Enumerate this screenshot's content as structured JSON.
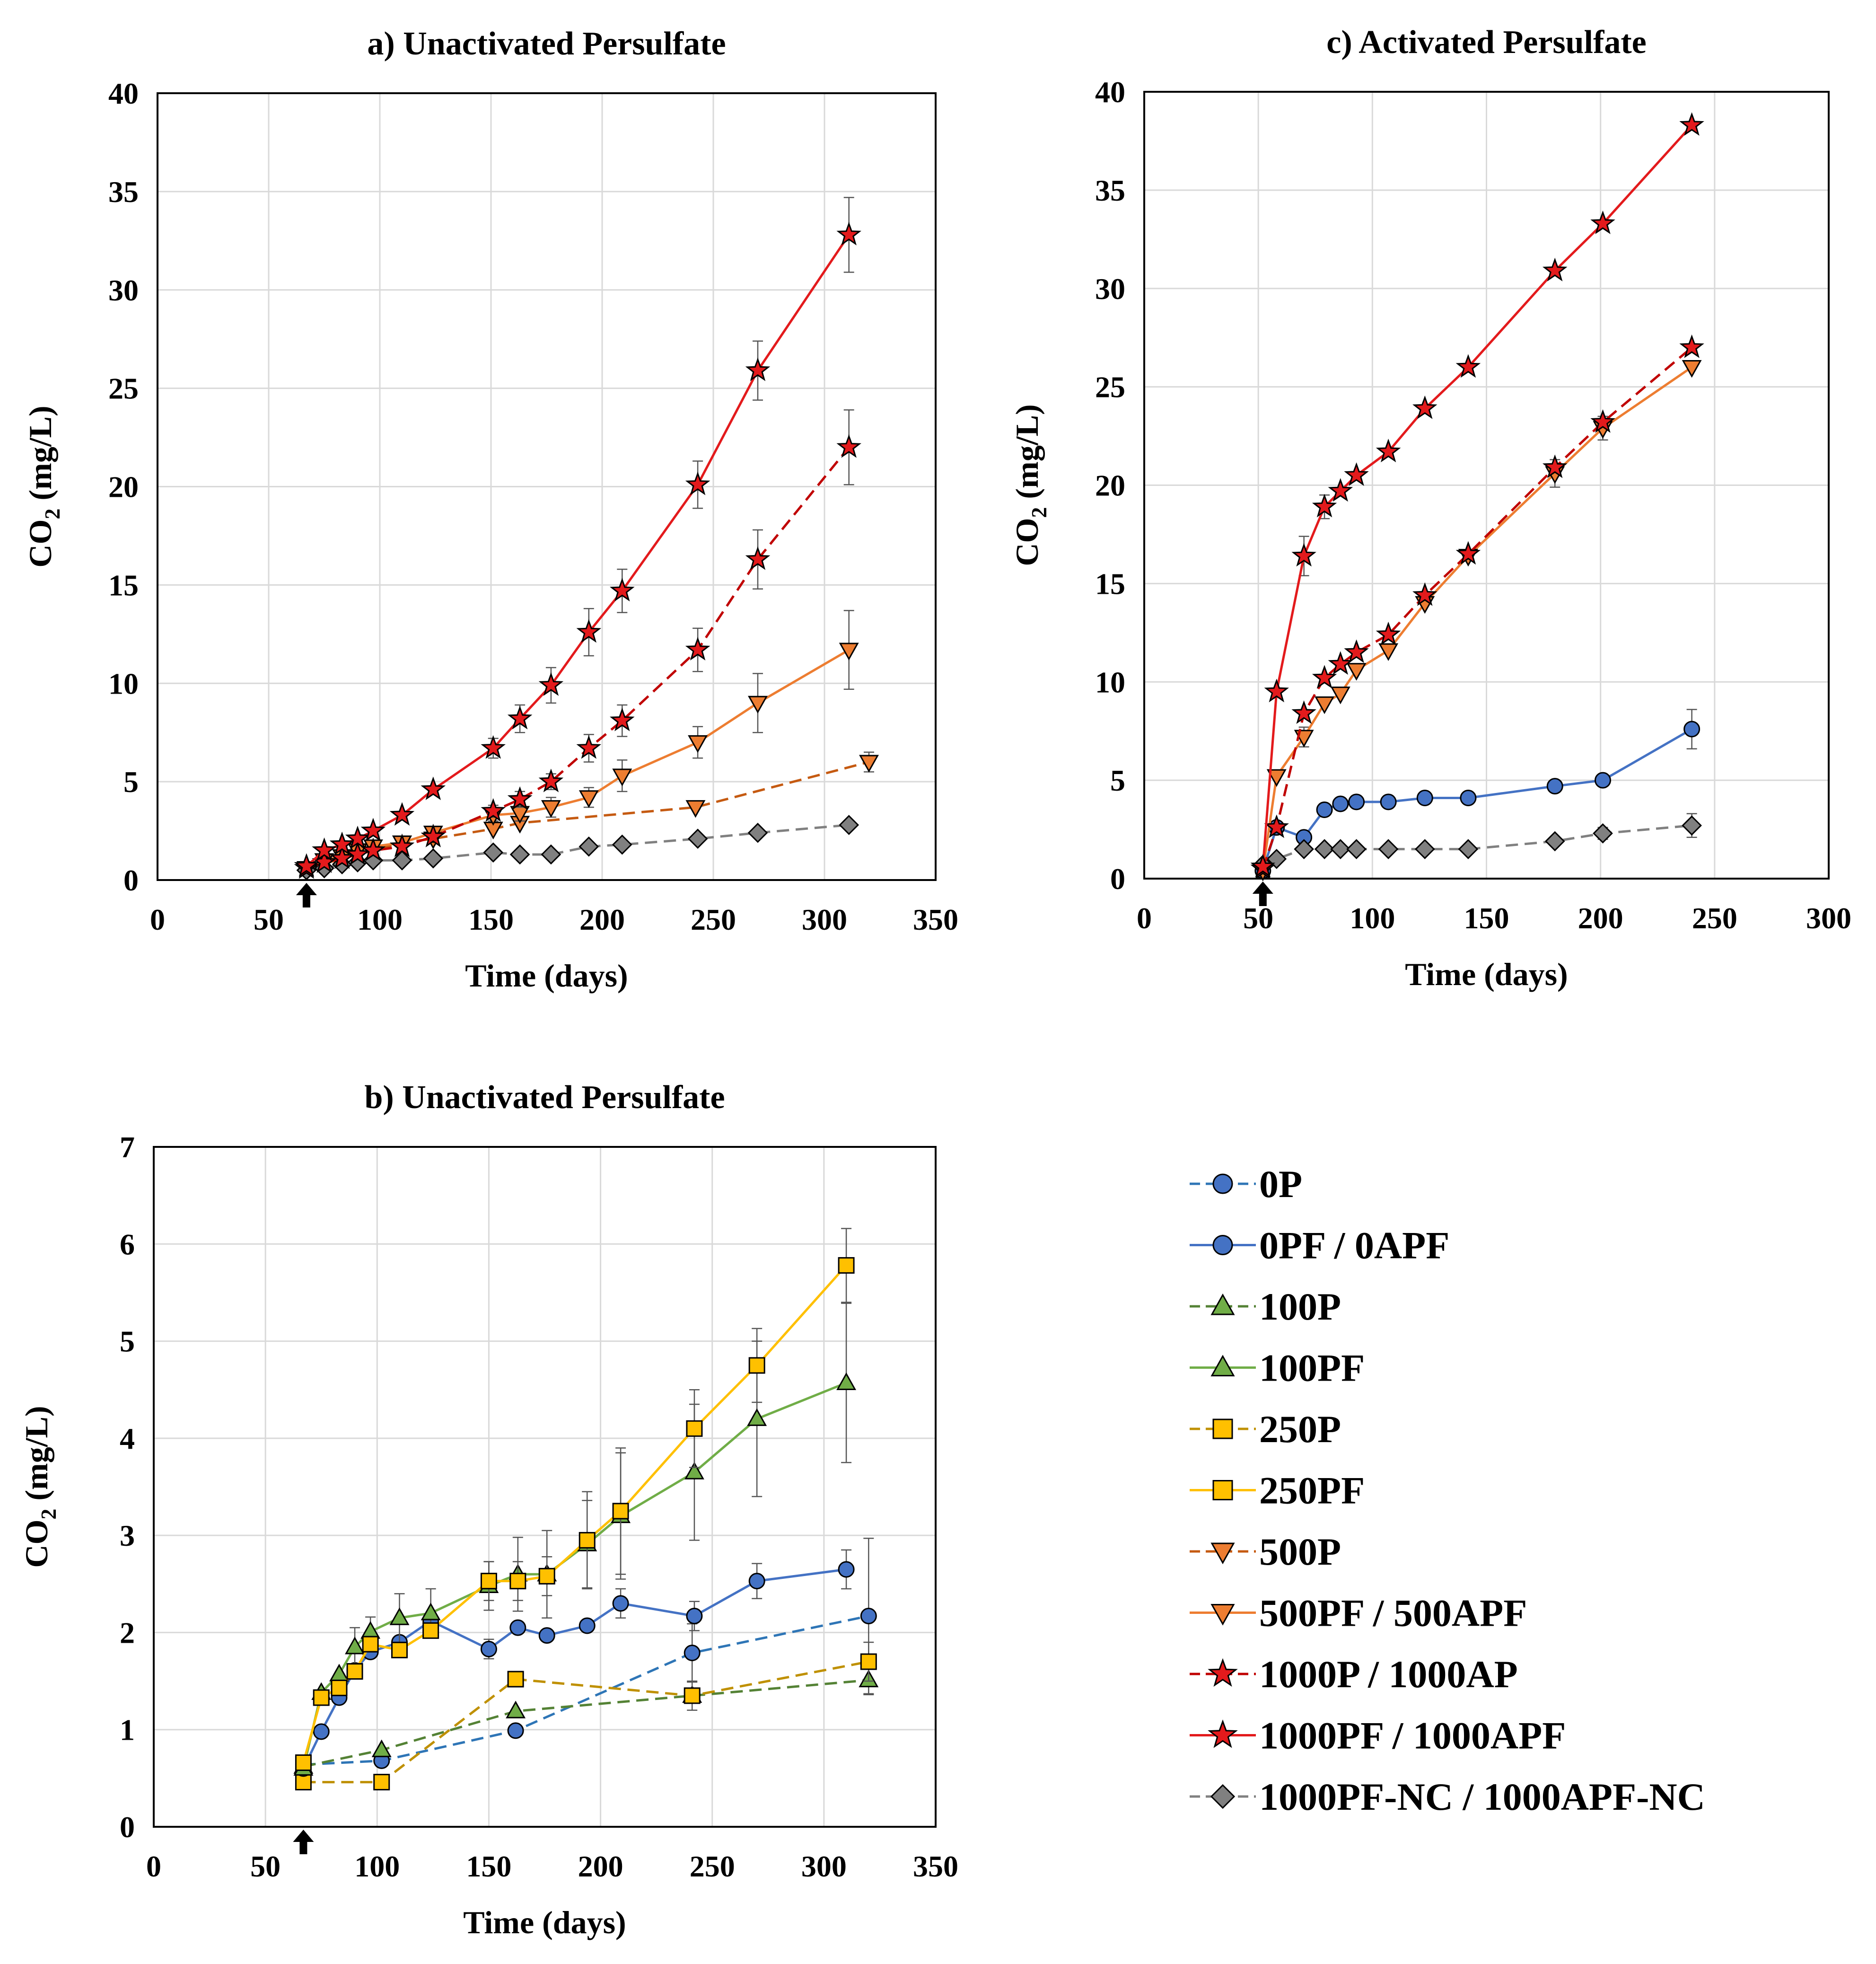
{
  "series_styles": {
    "0P": {
      "color": "#2e75b6",
      "fill": "#4472c4",
      "marker": "circle",
      "dash": true
    },
    "0PF": {
      "color": "#4472c4",
      "fill": "#4472c4",
      "marker": "circle",
      "dash": false
    },
    "100P": {
      "color": "#548235",
      "fill": "#70ad47",
      "marker": "triangle",
      "dash": true
    },
    "100PF": {
      "color": "#70ad47",
      "fill": "#70ad47",
      "marker": "triangle",
      "dash": false
    },
    "250P": {
      "color": "#bf9000",
      "fill": "#ffc000",
      "marker": "square",
      "dash": true
    },
    "250PF": {
      "color": "#ffc000",
      "fill": "#ffc000",
      "marker": "square",
      "dash": false
    },
    "500P": {
      "color": "#c55a11",
      "fill": "#ed7d31",
      "marker": "triangle-down",
      "dash": true
    },
    "500PF": {
      "color": "#ed7d31",
      "fill": "#ed7d31",
      "marker": "triangle-down",
      "dash": false
    },
    "1000P": {
      "color": "#c00000",
      "fill": "#e31a1c",
      "marker": "star",
      "dash": true
    },
    "1000PF": {
      "color": "#e31a1c",
      "fill": "#e31a1c",
      "marker": "star",
      "dash": false
    },
    "NC": {
      "color": "#808080",
      "fill": "#808080",
      "marker": "diamond",
      "dash": true
    }
  },
  "chart_data": [
    {
      "type": "line",
      "title": "a) Unactivated Persulfate",
      "xlabel": "Time (days)",
      "ylabel": "CO2 (mg/L)",
      "ylabel_main": "CO",
      "ylabel_sub": "2",
      "ylabel_rest": " (mg/L)",
      "xlim": [
        0,
        350
      ],
      "ylim": [
        0,
        40
      ],
      "xticks": [
        "0",
        "50",
        "100",
        "150",
        "200",
        "250",
        "300",
        "350"
      ],
      "yticks": [
        "0",
        "5",
        "10",
        "15",
        "20",
        "25",
        "30",
        "35",
        "40"
      ],
      "grid": true,
      "arrow_day": 67,
      "series": [
        {
          "name": "500P",
          "style": "500P",
          "x": [
            67,
            110,
            124,
            151,
            163,
            242,
            320
          ],
          "y": [
            0.6,
            1.9,
            2.1,
            2.6,
            2.9,
            3.7,
            6.0
          ],
          "err": [
            0,
            0,
            0,
            0,
            0,
            0,
            0.5
          ]
        },
        {
          "name": "500PF",
          "style": "500PF",
          "x": [
            67,
            75,
            83,
            90,
            97,
            110,
            124,
            151,
            163,
            177,
            194,
            209,
            243,
            270,
            311
          ],
          "y": [
            0.6,
            1.0,
            1.2,
            1.5,
            1.7,
            1.9,
            2.4,
            3.3,
            3.4,
            3.7,
            4.2,
            5.3,
            7.0,
            9.0,
            11.7
          ],
          "err": [
            0,
            0,
            0,
            0,
            0,
            0,
            0,
            0.3,
            0.4,
            0.5,
            0.5,
            0.8,
            0.8,
            1.5,
            2.0
          ]
        },
        {
          "name": "1000PF-NC",
          "style": "NC",
          "x": [
            67,
            75,
            83,
            90,
            97,
            110,
            124,
            151,
            163,
            177,
            194,
            209,
            243,
            270,
            311
          ],
          "y": [
            0.5,
            0.6,
            0.8,
            0.9,
            1.0,
            1.0,
            1.1,
            1.4,
            1.3,
            1.3,
            1.7,
            1.8,
            2.1,
            2.4,
            2.8
          ],
          "err": [
            0,
            0,
            0,
            0,
            0,
            0,
            0,
            0,
            0,
            0,
            0,
            0,
            0,
            0,
            0
          ]
        },
        {
          "name": "1000P",
          "style": "1000P",
          "x": [
            67,
            75,
            83,
            90,
            97,
            110,
            124,
            151,
            163,
            177,
            194,
            209,
            243,
            270,
            311
          ],
          "y": [
            0.6,
            0.9,
            1.1,
            1.3,
            1.5,
            1.7,
            2.2,
            3.5,
            4.1,
            5.0,
            6.7,
            8.1,
            11.7,
            16.3,
            22.0
          ],
          "err": [
            0,
            0,
            0,
            0,
            0,
            0,
            0,
            0.3,
            0.4,
            0.4,
            0.7,
            0.8,
            1.1,
            1.5,
            1.9
          ]
        },
        {
          "name": "1000PF",
          "style": "1000PF",
          "x": [
            67,
            75,
            83,
            90,
            97,
            110,
            124,
            151,
            163,
            177,
            194,
            209,
            243,
            270,
            311
          ],
          "y": [
            0.7,
            1.5,
            1.8,
            2.1,
            2.5,
            3.3,
            4.6,
            6.7,
            8.2,
            9.9,
            12.6,
            14.7,
            20.1,
            25.9,
            32.8
          ],
          "err": [
            0,
            0,
            0,
            0,
            0,
            0,
            0,
            0.5,
            0.7,
            0.9,
            1.2,
            1.1,
            1.2,
            1.5,
            1.9
          ]
        }
      ]
    },
    {
      "type": "line",
      "title": "c) Activated Persulfate",
      "xlabel": "Time (days)",
      "ylabel": "CO2 (mg/L)",
      "ylabel_main": "CO",
      "ylabel_sub": "2",
      "ylabel_rest": " (mg/L)",
      "xlim": [
        0,
        300
      ],
      "ylim": [
        0,
        40
      ],
      "xticks": [
        "0",
        "50",
        "100",
        "150",
        "200",
        "250",
        "300"
      ],
      "yticks": [
        "0",
        "5",
        "10",
        "15",
        "20",
        "25",
        "30",
        "35",
        "40"
      ],
      "grid": true,
      "arrow_day": 52,
      "series": [
        {
          "name": "0APF",
          "style": "0PF",
          "x": [
            52,
            58,
            70,
            79,
            86,
            93,
            107,
            123,
            142,
            180,
            201,
            240
          ],
          "y": [
            0.4,
            2.6,
            2.1,
            3.5,
            3.8,
            3.9,
            3.9,
            4.1,
            4.1,
            4.7,
            5.0,
            7.6
          ],
          "err": [
            0,
            0,
            0,
            0,
            0,
            0,
            0,
            0,
            0,
            0,
            0,
            1.0
          ]
        },
        {
          "name": "1000APF-NC",
          "style": "NC",
          "x": [
            52,
            58,
            70,
            79,
            86,
            93,
            107,
            123,
            142,
            180,
            201,
            240
          ],
          "y": [
            0.7,
            1.0,
            1.5,
            1.5,
            1.5,
            1.5,
            1.5,
            1.5,
            1.5,
            1.9,
            2.3,
            2.7
          ],
          "err": [
            0,
            0,
            0,
            0,
            0,
            0,
            0,
            0,
            0,
            0,
            0.3,
            0.6
          ]
        },
        {
          "name": "500APF",
          "style": "500PF",
          "x": [
            52,
            58,
            70,
            79,
            86,
            93,
            107,
            123,
            142,
            180,
            201,
            240
          ],
          "y": [
            0.4,
            5.2,
            7.2,
            8.9,
            9.4,
            10.6,
            11.6,
            14.0,
            16.4,
            20.6,
            22.9,
            26.0
          ],
          "err": [
            0,
            0,
            0.5,
            0,
            0,
            0,
            0,
            0,
            0,
            0.7,
            0.6,
            0
          ]
        },
        {
          "name": "1000AP",
          "style": "1000P",
          "x": [
            52,
            58,
            70,
            79,
            86,
            93,
            107,
            123,
            142,
            180,
            201,
            240
          ],
          "y": [
            0.5,
            2.6,
            8.4,
            10.2,
            10.9,
            11.5,
            12.4,
            14.4,
            16.5,
            20.9,
            23.2,
            27.0
          ],
          "err": [
            0,
            0,
            0,
            0,
            0,
            0,
            0,
            0,
            0,
            0,
            0,
            0
          ]
        },
        {
          "name": "1000APF",
          "style": "1000PF",
          "x": [
            52,
            58,
            70,
            79,
            86,
            93,
            107,
            123,
            142,
            180,
            201,
            240
          ],
          "y": [
            0.6,
            9.5,
            16.4,
            18.9,
            19.7,
            20.5,
            21.7,
            23.9,
            26.0,
            30.9,
            33.3,
            38.3
          ],
          "err": [
            0,
            0,
            1.0,
            0.6,
            0,
            0,
            0,
            0,
            0,
            0,
            0,
            0
          ]
        }
      ]
    },
    {
      "type": "line",
      "title": "b) Unactivated Persulfate",
      "xlabel": "Time (days)",
      "ylabel": "CO2 (mg/L)",
      "ylabel_main": "CO",
      "ylabel_sub": "2",
      "ylabel_rest": " (mg/L)",
      "xlim": [
        0,
        350
      ],
      "ylim": [
        0,
        7
      ],
      "xticks": [
        "0",
        "50",
        "100",
        "150",
        "200",
        "250",
        "300",
        "350"
      ],
      "yticks": [
        "0",
        "1",
        "2",
        "3",
        "4",
        "5",
        "6",
        "7"
      ],
      "grid": true,
      "arrow_day": 67,
      "series": [
        {
          "name": "0P",
          "style": "0P",
          "x": [
            67,
            102,
            162,
            241,
            320
          ],
          "y": [
            0.64,
            0.68,
            0.99,
            1.79,
            2.17
          ],
          "err": [
            0,
            0,
            0,
            0.3,
            0.8
          ]
        },
        {
          "name": "100P",
          "style": "100P",
          "x": [
            67,
            102,
            162,
            241,
            320
          ],
          "y": [
            0.62,
            0.79,
            1.19,
            1.35,
            1.51
          ],
          "err": [
            0,
            0,
            0,
            0,
            0.15
          ]
        },
        {
          "name": "250P",
          "style": "250P",
          "x": [
            67,
            102,
            162,
            241,
            320
          ],
          "y": [
            0.46,
            0.46,
            1.52,
            1.35,
            1.7
          ],
          "err": [
            0,
            0,
            0,
            0.15,
            0.2
          ]
        },
        {
          "name": "0PF",
          "style": "0PF",
          "x": [
            67,
            75,
            83,
            90,
            97,
            110,
            124,
            150,
            163,
            176,
            194,
            209,
            242,
            270,
            310
          ],
          "y": [
            0.6,
            0.98,
            1.33,
            1.61,
            1.8,
            1.9,
            2.12,
            1.83,
            2.05,
            1.97,
            2.07,
            2.3,
            2.17,
            2.53,
            2.65
          ],
          "err": [
            0,
            0,
            0,
            0,
            0,
            0,
            0,
            0.1,
            0,
            0,
            0,
            0.15,
            0.15,
            0.18,
            0.2
          ]
        },
        {
          "name": "100PF",
          "style": "100PF",
          "x": [
            67,
            75,
            83,
            90,
            97,
            110,
            124,
            150,
            163,
            176,
            194,
            209,
            242,
            270,
            310
          ],
          "y": [
            0.6,
            1.38,
            1.57,
            1.85,
            2.01,
            2.15,
            2.2,
            2.48,
            2.6,
            2.6,
            2.91,
            3.2,
            3.65,
            4.2,
            4.57
          ],
          "err": [
            0,
            0,
            0,
            0.2,
            0.15,
            0.25,
            0.25,
            0.25,
            0.38,
            0.45,
            0.45,
            0.65,
            0.7,
            0.8,
            0.82
          ]
        },
        {
          "name": "250PF",
          "style": "250PF",
          "x": [
            67,
            75,
            83,
            90,
            97,
            110,
            124,
            150,
            163,
            176,
            194,
            209,
            242,
            270,
            310
          ],
          "y": [
            0.66,
            1.33,
            1.43,
            1.6,
            1.88,
            1.82,
            2.02,
            2.53,
            2.53,
            2.58,
            2.95,
            3.25,
            4.1,
            4.75,
            5.78
          ],
          "err": [
            0,
            0,
            0,
            0,
            0,
            0,
            0,
            0.2,
            0.2,
            0.2,
            0.5,
            0.65,
            0.4,
            0.38,
            0.38
          ]
        }
      ]
    }
  ],
  "legend": {
    "items": [
      {
        "label": "0P",
        "style": "0P"
      },
      {
        "label": "0PF / 0APF",
        "style": "0PF"
      },
      {
        "label": "100P",
        "style": "100P"
      },
      {
        "label": "100PF",
        "style": "100PF"
      },
      {
        "label": "250P",
        "style": "250P"
      },
      {
        "label": "250PF",
        "style": "250PF"
      },
      {
        "label": "500P",
        "style": "500P"
      },
      {
        "label": "500PF / 500APF",
        "style": "500PF"
      },
      {
        "label": "1000P / 1000AP",
        "style": "1000P"
      },
      {
        "label": "1000PF / 1000APF",
        "style": "1000PF"
      },
      {
        "label": "1000PF-NC / 1000APF-NC",
        "style": "NC"
      }
    ]
  }
}
